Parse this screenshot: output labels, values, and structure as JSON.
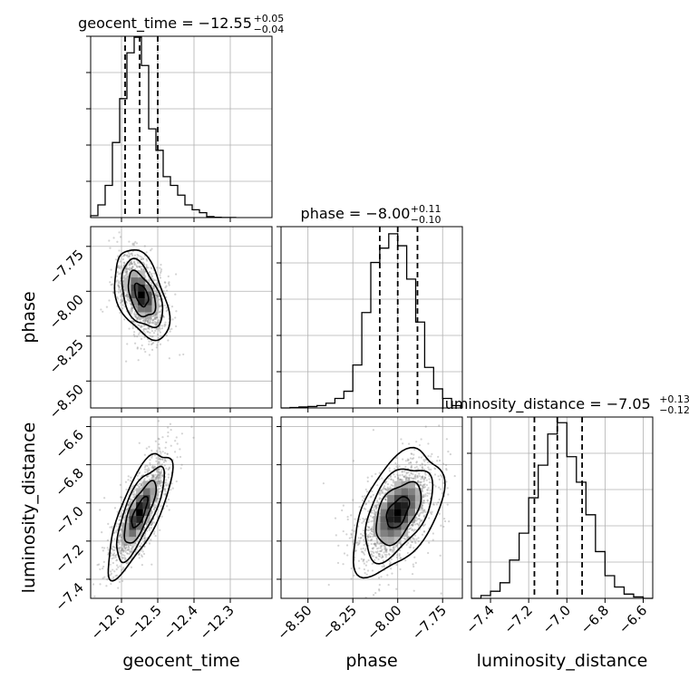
{
  "chart_data": {
    "type": "corner",
    "grid": true,
    "parameters": [
      {
        "name": "geocent_time",
        "xlabel": "geocent_time",
        "median": -12.55,
        "plus": 0.05,
        "minus": 0.04,
        "title": "geocent_time = −12.55",
        "title_plus": "+0.05",
        "title_minus": "−0.04",
        "range": [
          -12.685,
          -12.185
        ],
        "ticks": [
          -12.6,
          -12.5,
          -12.4,
          -12.3
        ],
        "tick_labels": [
          "−12.6",
          "−12.5",
          "−12.4",
          "−12.3"
        ],
        "quantiles": [
          -12.59,
          -12.55,
          -12.5
        ],
        "hist": {
          "edges": [
            -12.685,
            -12.665,
            -12.645,
            -12.625,
            -12.605,
            -12.585,
            -12.565,
            -12.545,
            -12.525,
            -12.505,
            -12.485,
            -12.465,
            -12.445,
            -12.425,
            -12.405,
            -12.385,
            -12.365,
            -12.345,
            -12.325,
            -12.305,
            -12.285
          ],
          "counts": [
            0.2,
            1.3,
            3.3,
            7.7,
            12.2,
            16.9,
            18.5,
            15.6,
            9.1,
            6.9,
            4.2,
            3.3,
            2.3,
            1.3,
            0.8,
            0.5,
            0.1,
            0.03,
            0.01,
            0.01
          ],
          "ymax": 18.6
        }
      },
      {
        "name": "phase",
        "xlabel": "phase",
        "ylabel": "phase",
        "median": -8.0,
        "plus": 0.11,
        "minus": 0.1,
        "title": "phase = −8.00",
        "title_plus": "+0.11",
        "title_minus": "−0.10",
        "range": [
          -8.65,
          -7.64
        ],
        "ticks": [
          -8.5,
          -8.25,
          -8.0,
          -7.75
        ],
        "tick_labels": [
          "−8.50",
          "−8.25",
          "−8.00",
          "−7.75"
        ],
        "quantiles": [
          -8.1,
          -8.0,
          -7.89
        ],
        "hist": {
          "edges": [
            -8.65,
            -8.6,
            -8.55,
            -8.5,
            -8.45,
            -8.4,
            -8.35,
            -8.3,
            -8.25,
            -8.2,
            -8.15,
            -8.1,
            -8.05,
            -8.0,
            -7.95,
            -7.9,
            -7.85,
            -7.8,
            -7.75,
            -7.7,
            -7.65
          ],
          "counts": [
            0.0,
            0.1,
            0.2,
            0.3,
            0.5,
            1.0,
            2.0,
            3.5,
            9.0,
            20.0,
            30.5,
            33.5,
            36.5,
            34.0,
            27.0,
            18.0,
            8.5,
            4.0,
            2.0,
            0.5
          ],
          "ymax": 38.0
        }
      },
      {
        "name": "luminosity_distance",
        "xlabel": "luminosity_distance",
        "ylabel": "luminosity_distance",
        "median": -7.05,
        "plus": 0.13,
        "minus": 0.12,
        "title": "luminosity_distance = −7.05",
        "title_plus": "+0.13",
        "title_minus": "−0.12",
        "range": [
          -7.5,
          -6.55
        ],
        "ticks": [
          -7.4,
          -7.2,
          -7.0,
          -6.8,
          -6.6
        ],
        "tick_labels": [
          "−7.4",
          "−7.2",
          "−7.0",
          "−6.8",
          "−6.6"
        ],
        "quantiles": [
          -7.17,
          -7.05,
          -6.92
        ],
        "hist": {
          "edges": [
            -7.5,
            -7.45,
            -7.4,
            -7.35,
            -7.3,
            -7.25,
            -7.2,
            -7.15,
            -7.1,
            -7.05,
            -7.0,
            -6.95,
            -6.9,
            -6.85,
            -6.8,
            -6.75,
            -6.7,
            -6.65,
            -6.6,
            -6.55
          ],
          "counts": [
            0.0,
            1.0,
            2.5,
            5.5,
            13.5,
            23.0,
            35.5,
            47.0,
            58.0,
            62.0,
            50.0,
            41.0,
            29.5,
            16.5,
            8.0,
            4.0,
            1.5,
            0.5,
            0.0
          ],
          "ymax": 64.0
        }
      }
    ],
    "pairs": [
      {
        "x": "geocent_time",
        "y": "phase",
        "center": [
          -12.545,
          -8.02
        ],
        "correlation": -0.45,
        "sigma": [
          0.03,
          0.1
        ],
        "xbins": 10,
        "ybins": 10
      },
      {
        "x": "geocent_time",
        "y": "luminosity_distance",
        "center": [
          -12.55,
          -7.05
        ],
        "correlation": 0.75,
        "sigma": [
          0.035,
          0.13
        ],
        "xbins": 10,
        "ybins": 10
      },
      {
        "x": "phase",
        "y": "luminosity_distance",
        "center": [
          -8.0,
          -7.05
        ],
        "correlation": 0.5,
        "sigma": [
          0.1,
          0.13
        ],
        "xbins": 10,
        "ybins": 10
      }
    ],
    "contour_levels_sigma": [
      0.5,
      1.0,
      1.5,
      2.0
    ],
    "colors": {
      "line": "#000000",
      "grid": "#b0b0b0",
      "points": "#808080",
      "density": "#000000"
    }
  }
}
